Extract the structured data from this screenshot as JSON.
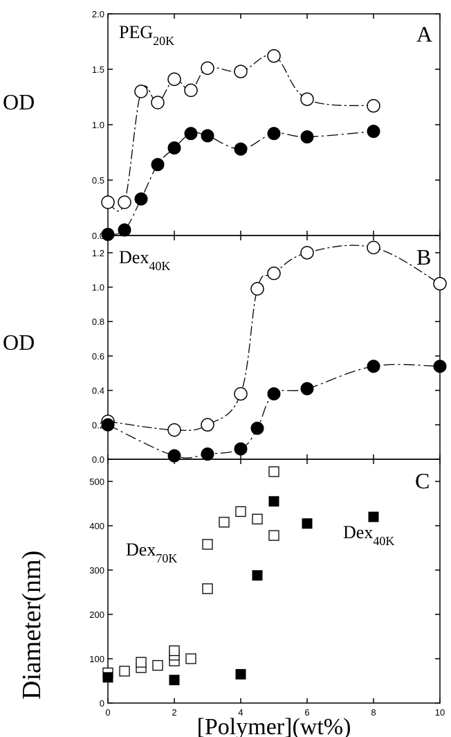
{
  "chart_data": [
    {
      "type": "line",
      "panel": "A",
      "ylabel": "OD",
      "annotation": {
        "main": "PEG",
        "sub": "20K"
      },
      "ylim": [
        0,
        2.0
      ],
      "yticks": [
        "0.0",
        "0.5",
        "1.0",
        "1.5",
        "2.0"
      ],
      "xlim": [
        0,
        10
      ],
      "series": [
        {
          "marker": "open-circle",
          "x": [
            0,
            0.5,
            1,
            1.5,
            2,
            2.5,
            3,
            4,
            5,
            6,
            8
          ],
          "y": [
            0.3,
            0.3,
            1.3,
            1.2,
            1.41,
            1.31,
            1.51,
            1.48,
            1.62,
            1.23,
            1.17
          ]
        },
        {
          "marker": "filled-circle",
          "x": [
            0,
            0.5,
            1,
            1.5,
            2,
            2.5,
            3,
            4,
            5,
            6,
            8
          ],
          "y": [
            0.01,
            0.05,
            0.33,
            0.64,
            0.79,
            0.92,
            0.9,
            0.78,
            0.92,
            0.89,
            0.94
          ]
        }
      ]
    },
    {
      "type": "line",
      "panel": "B",
      "ylabel": "OD",
      "annotation": {
        "main": "Dex",
        "sub": "40K"
      },
      "ylim": [
        0,
        1.3
      ],
      "yticks": [
        "0.0",
        "0.2",
        "0.4",
        "0.6",
        "0.8",
        "1.0",
        "1.2"
      ],
      "xlim": [
        0,
        10
      ],
      "series": [
        {
          "marker": "open-circle",
          "x": [
            0,
            2,
            3,
            4,
            4.5,
            5,
            6,
            8,
            10
          ],
          "y": [
            0.22,
            0.17,
            0.2,
            0.38,
            0.99,
            1.08,
            1.2,
            1.23,
            1.02
          ]
        },
        {
          "marker": "filled-circle",
          "x": [
            0,
            2,
            3,
            4,
            4.5,
            5,
            6,
            8,
            10
          ],
          "y": [
            0.2,
            0.02,
            0.03,
            0.06,
            0.18,
            0.38,
            0.41,
            0.54,
            0.54
          ]
        }
      ]
    },
    {
      "type": "scatter",
      "panel": "C",
      "ylabel": "Diameter(nm)",
      "xlabel": "[Polymer](wt%)",
      "ylim": [
        0,
        550
      ],
      "yticks": [
        "0",
        "100",
        "200",
        "300",
        "400",
        "500"
      ],
      "xticks": [
        "0",
        "2",
        "4",
        "6",
        "8",
        "10"
      ],
      "xlim": [
        0,
        10
      ],
      "series": [
        {
          "name": "Dex70K",
          "label": {
            "main": "Dex",
            "sub": "70K"
          },
          "marker": "open-square",
          "x": [
            0,
            0.5,
            1,
            1,
            1.5,
            2,
            2,
            2,
            2.5,
            3,
            3,
            3.5,
            4,
            4.5,
            5,
            5
          ],
          "y": [
            68,
            72,
            80,
            92,
            85,
            95,
            108,
            118,
            100,
            358,
            258,
            408,
            432,
            415,
            378,
            522
          ]
        },
        {
          "name": "Dex40K",
          "label": {
            "main": "Dex",
            "sub": "40K"
          },
          "marker": "filled-square",
          "x": [
            0,
            2,
            4,
            4.5,
            5,
            6,
            8
          ],
          "y": [
            58,
            52,
            65,
            288,
            455,
            405,
            420
          ]
        }
      ]
    }
  ]
}
